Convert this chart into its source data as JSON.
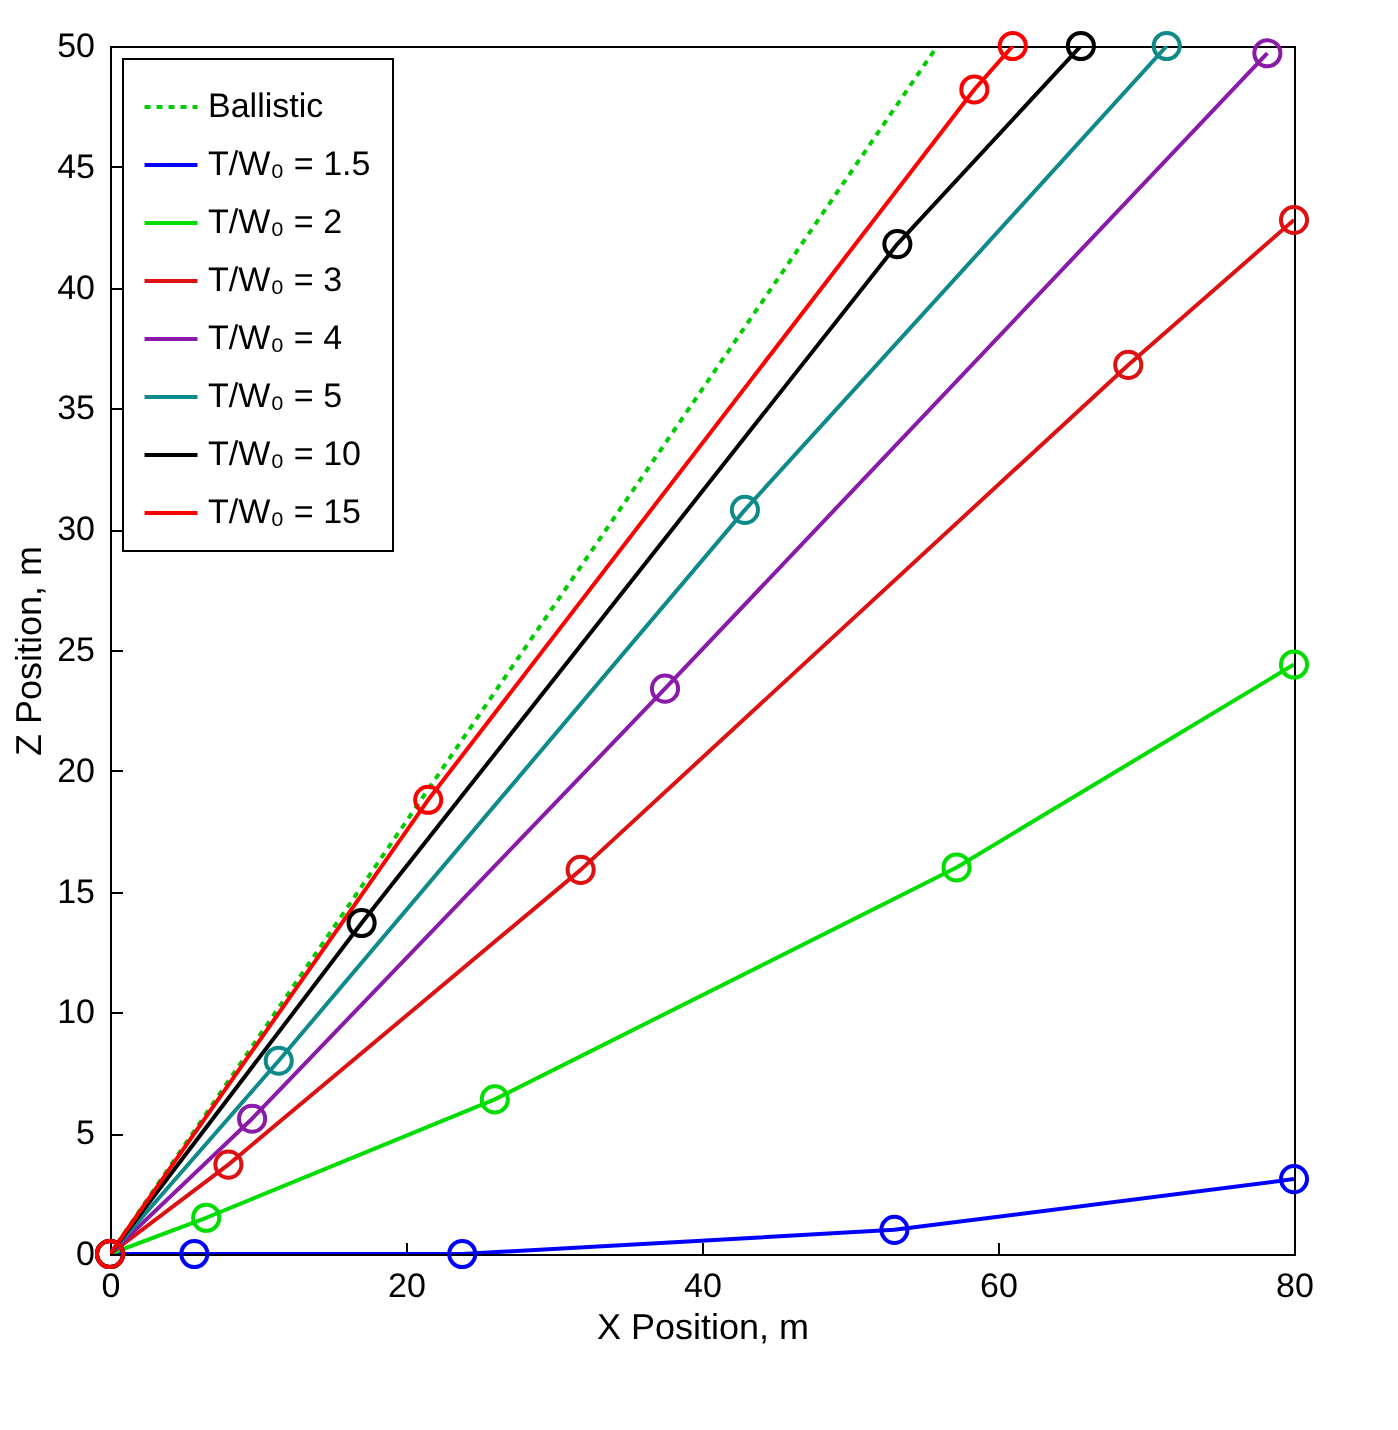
{
  "chart_data": {
    "type": "line",
    "xlabel": "X Position, m",
    "ylabel": "Z Position, m",
    "xlim": [
      0,
      80
    ],
    "xticks": [
      0,
      20,
      40,
      60,
      80
    ],
    "ylim": [
      0,
      50
    ],
    "yticks": [
      0,
      5,
      10,
      15,
      20,
      25,
      30,
      35,
      40,
      45,
      50
    ],
    "grid": false,
    "legend": "top left",
    "marker": "circle",
    "line_style": "solid",
    "series": [
      {
        "name": "Ballistic",
        "color": "#00cc00",
        "line_style": "dotted",
        "marker": "none",
        "x": [
          0,
          55.9
        ],
        "values": [
          0,
          50
        ]
      },
      {
        "name": "T/W₀ = 1.5",
        "color": "#0000ff",
        "x": [
          0,
          5.7,
          23.8,
          53,
          80
        ],
        "values": [
          0,
          0,
          0,
          1,
          3.1
        ]
      },
      {
        "name": "T/W₀ = 2",
        "color": "#00dd00",
        "x": [
          0,
          6.5,
          26,
          57.2,
          80
        ],
        "values": [
          0,
          1.5,
          6.4,
          16,
          24.4
        ]
      },
      {
        "name": "T/W₀ = 3",
        "color": "#dd1111",
        "x": [
          0,
          8,
          31.8,
          68.8,
          80
        ],
        "values": [
          0,
          3.7,
          15.9,
          36.8,
          42.8
        ]
      },
      {
        "name": "T/W₀ = 4",
        "color": "#8a1aa8",
        "x": [
          0,
          9.6,
          37.5,
          78.2
        ],
        "values": [
          0,
          5.6,
          23.4,
          49.7
        ]
      },
      {
        "name": "T/W₀ = 5",
        "color": "#0f8a8a",
        "x": [
          0,
          11.4,
          42.9,
          71.4
        ],
        "values": [
          0,
          8,
          30.8,
          50
        ]
      },
      {
        "name": "T/W₀ = 10",
        "color": "#000000",
        "x": [
          0,
          17,
          53.2,
          65.6
        ],
        "values": [
          0,
          13.7,
          41.8,
          50
        ]
      },
      {
        "name": "T/W₀ = 15",
        "color": "#ff0000",
        "x": [
          0,
          21.5,
          58.4,
          61
        ],
        "values": [
          0,
          18.8,
          48.2,
          50
        ]
      }
    ]
  }
}
